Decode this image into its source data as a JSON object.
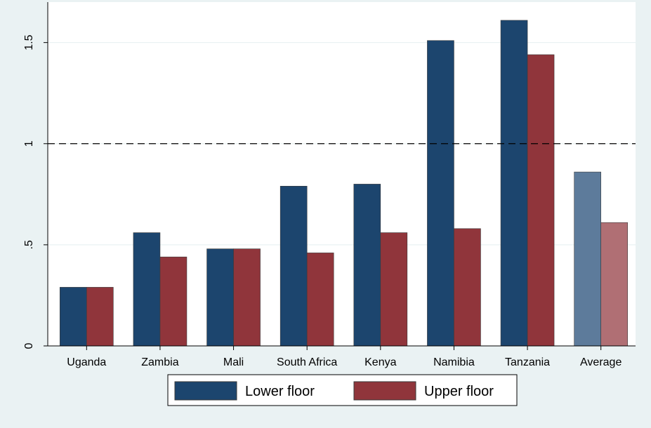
{
  "chart_data": {
    "type": "bar",
    "title": "",
    "xlabel": "",
    "ylabel": "",
    "categories": [
      "Uganda",
      "Zambia",
      "Mali",
      "South Africa",
      "Kenya",
      "Namibia",
      "Tanzania",
      "Average"
    ],
    "series": [
      {
        "name": "Lower floor",
        "values": [
          0.29,
          0.56,
          0.48,
          0.79,
          0.8,
          1.51,
          1.61,
          0.86
        ],
        "color": "#1c456e",
        "average_color": "#5d7b9b"
      },
      {
        "name": "Upper floor",
        "values": [
          0.29,
          0.44,
          0.48,
          0.46,
          0.56,
          0.58,
          1.44,
          0.61
        ],
        "color": "#90353b",
        "average_color": "#b06f74"
      }
    ],
    "ylim": [
      0,
      1.7
    ],
    "yticks": [
      0,
      0.5,
      1,
      1.5
    ],
    "ytick_labels": [
      "0",
      ".5",
      "1",
      "1.5"
    ],
    "reference_line": {
      "y": 1,
      "style": "dashed"
    },
    "grid": true,
    "legend_position": "bottom"
  }
}
